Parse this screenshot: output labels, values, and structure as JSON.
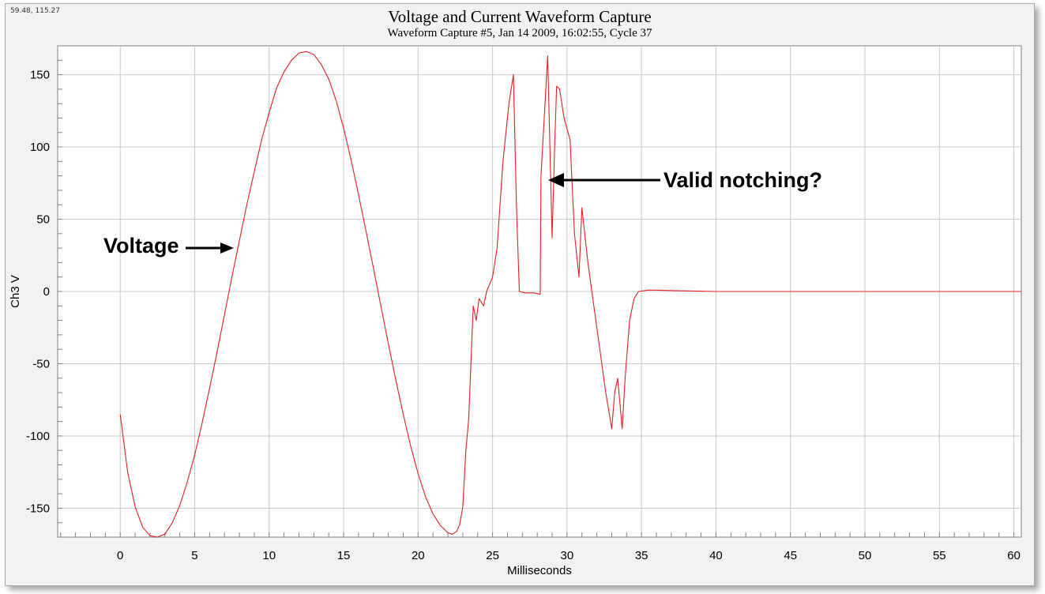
{
  "chart_data": {
    "type": "line",
    "title": "Voltage and Current Waveform Capture",
    "subtitle": "Waveform Capture #5, Jan 14 2009, 16:02:55,  Cycle 37",
    "coordinate_readout": "59.48, 115.27",
    "xlabel": "Milliseconds",
    "ylabel": "Ch3 V",
    "xlim": [
      -4.2,
      60.5
    ],
    "ylim": [
      -170,
      170
    ],
    "xticks": [
      0,
      5,
      10,
      15,
      20,
      25,
      30,
      35,
      40,
      45,
      50,
      55,
      60
    ],
    "yticks": [
      -150,
      -100,
      -50,
      0,
      50,
      100,
      150
    ],
    "grid": true,
    "series_color": "#e02020",
    "series": [
      {
        "x": [
          0,
          0.5,
          1,
          1.5,
          2,
          2.5,
          3,
          3.5,
          4,
          4.5,
          5,
          5.5,
          6,
          6.5,
          7,
          7.5,
          8,
          8.5,
          9,
          9.5,
          10,
          10.5,
          11,
          11.5,
          12,
          12.5,
          13,
          13.5,
          14,
          14.5,
          15,
          15.5,
          16,
          16.5,
          17,
          17.5,
          18,
          18.5,
          19,
          19.5,
          20,
          20.5,
          21,
          21.5,
          22,
          22.3,
          22.6,
          22.8,
          23.0,
          23.2,
          23.4,
          23.7,
          23.9,
          24.1,
          24.4,
          24.6,
          24.8,
          25.0,
          25.3,
          25.7,
          26.1,
          26.4,
          26.6,
          26.8,
          27.2,
          27.8,
          28.2,
          28.25,
          28.7,
          28.85,
          29.0,
          29.15,
          29.3,
          29.5,
          29.8,
          30.2,
          30.5,
          30.8,
          31.0,
          31.4,
          31.8,
          32.2,
          32.6,
          33.0,
          33.2,
          33.4,
          33.7,
          33.9,
          34.2,
          34.5,
          34.8,
          35.5,
          40,
          45,
          50,
          55,
          60.5
        ],
        "y": [
          -85,
          -125,
          -149,
          -163,
          -169,
          -170,
          -168,
          -160,
          -148,
          -132,
          -113,
          -91,
          -67,
          -42,
          -16,
          10,
          35,
          60,
          83,
          105,
          124,
          141,
          152,
          160,
          165,
          166,
          164,
          157,
          147,
          132,
          113,
          91,
          67,
          42,
          16,
          -10,
          -36,
          -61,
          -85,
          -107,
          -126,
          -142,
          -154,
          -162,
          -167,
          -168,
          -166,
          -161,
          -149,
          -111,
          -88,
          -10,
          -20,
          -5,
          -10,
          0,
          5,
          10,
          30,
          90,
          130,
          150,
          60,
          0,
          -1,
          -1,
          -2,
          80,
          163,
          100,
          37,
          95,
          142,
          140,
          120,
          105,
          40,
          10,
          58,
          20,
          -10,
          -40,
          -70,
          -95,
          -70,
          -60,
          -95,
          -60,
          -20,
          -5,
          0,
          1,
          0,
          0,
          0,
          0,
          0
        ]
      }
    ]
  },
  "annotations": {
    "voltage": "Voltage",
    "notching": "Valid notching?"
  }
}
